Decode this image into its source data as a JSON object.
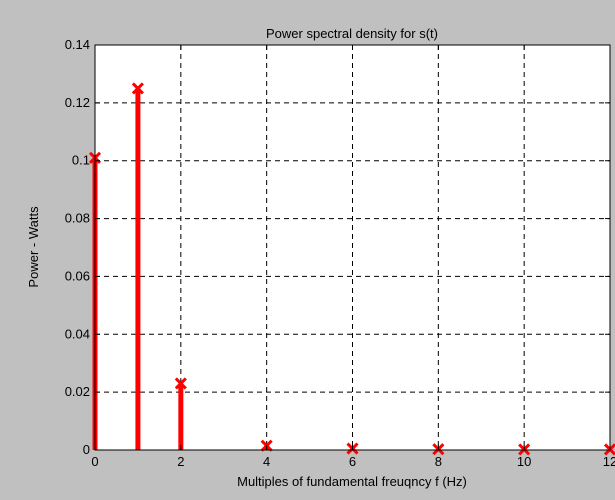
{
  "chart_data": {
    "type": "stem",
    "title": "Power spectral density for s(t)",
    "xlabel": "Multiples of fundamental freuqncy f (Hz)",
    "ylabel": "Power - Watts",
    "xlim": [
      0,
      12
    ],
    "ylim": [
      0,
      0.14
    ],
    "xticks": [
      "0",
      "2",
      "4",
      "6",
      "8",
      "10",
      "12"
    ],
    "yticks": [
      "0",
      "0.02",
      "0.04",
      "0.06",
      "0.08",
      "0.1",
      "0.12",
      "0.14"
    ],
    "grid": true,
    "series": [
      {
        "x": [
          0,
          1,
          2,
          4,
          6,
          8,
          10,
          12
        ],
        "y": [
          0.101,
          0.125,
          0.023,
          0.0015,
          0.0005,
          0.0003,
          0.0002,
          0.0002
        ]
      }
    ],
    "colors": {
      "stem": "#ff0000",
      "axes_bg": "#ffffff",
      "figure_bg": "#c0c0c0",
      "grid": "#000000"
    },
    "marker": "x"
  }
}
